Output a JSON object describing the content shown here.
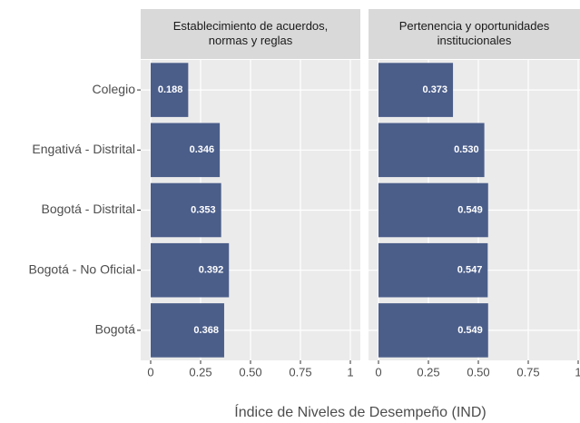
{
  "chart_data": {
    "type": "bar",
    "categories": [
      "Colegio",
      "Engativá - Distrital",
      "Bogotá - Distrital",
      "Bogotá - No Oficial",
      "Bogotá"
    ],
    "series": [
      {
        "name": "Establecimiento de acuerdos,\nnormas y reglas",
        "color": "#4b5e8a",
        "values": [
          0.188,
          0.346,
          0.353,
          0.392,
          0.368
        ],
        "value_labels": [
          "0.188",
          "0.346",
          "0.353",
          "0.392",
          "0.368"
        ]
      },
      {
        "name": "Pertenencia y oportunidades\ninstitucionales",
        "color": "#4b5e8a",
        "values": [
          0.373,
          0.53,
          0.549,
          0.547,
          0.549
        ],
        "value_labels": [
          "0.373",
          "0.530",
          "0.549",
          "0.547",
          "0.549"
        ]
      }
    ],
    "xlabel": "Índice de Niveles de Desempeño (IND)",
    "xlim": [
      0,
      1
    ],
    "xticks": [
      0,
      0.25,
      {
        "value": 0.5,
        "label": "0.50"
      },
      0.75,
      1
    ],
    "grid": true
  }
}
